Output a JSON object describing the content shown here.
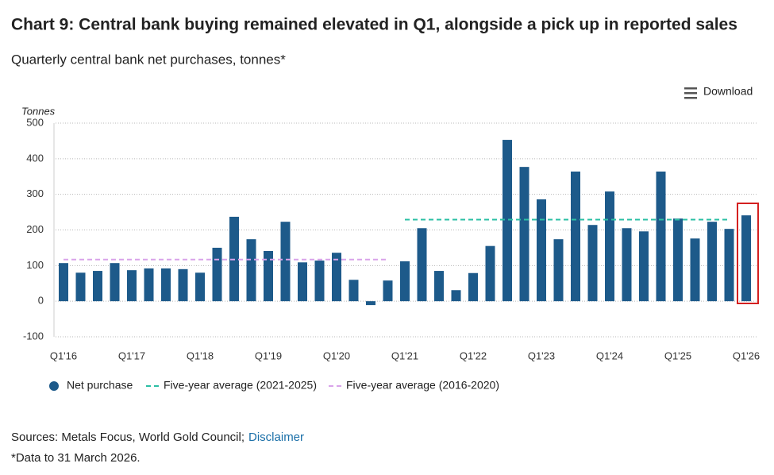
{
  "chart_data": {
    "type": "bar",
    "title": "Chart 9: Central bank buying remained elevated in Q1, alongside a pick up in reported sales",
    "subtitle": "Quarterly central bank net purchases, tonnes*",
    "y_label": "Tonnes",
    "categories": [
      "Q1'16",
      null,
      null,
      null,
      "Q1'17",
      null,
      null,
      null,
      "Q1'18",
      null,
      null,
      null,
      "Q1'19",
      null,
      null,
      null,
      "Q1'20",
      null,
      null,
      null,
      "Q1'21",
      null,
      null,
      null,
      "Q1'22",
      null,
      null,
      null,
      "Q1'23",
      null,
      null,
      null,
      "Q1'24",
      null,
      null,
      null,
      "Q1'25",
      null,
      null,
      null,
      "Q1'26"
    ],
    "series": [
      {
        "name": "Net purchase",
        "type": "bar",
        "color": "#1d5a8a",
        "values": [
          107,
          80,
          85,
          107,
          87,
          92,
          92,
          90,
          80,
          150,
          237,
          174,
          141,
          223,
          109,
          114,
          136,
          60,
          -11,
          58,
          112,
          205,
          85,
          31,
          79,
          155,
          453,
          377,
          286,
          174,
          364,
          214,
          308,
          205,
          196,
          364,
          232,
          176,
          223,
          203,
          241
        ]
      },
      {
        "name": "Five-year average (2021-2025)",
        "type": "line",
        "style": "dashed",
        "color": "#2bbfa4",
        "values": [
          null,
          null,
          null,
          null,
          null,
          null,
          null,
          null,
          null,
          null,
          null,
          null,
          null,
          null,
          null,
          null,
          null,
          null,
          null,
          null,
          229,
          229,
          229,
          229,
          229,
          229,
          229,
          229,
          229,
          229,
          229,
          229,
          229,
          229,
          229,
          229,
          229,
          229,
          229,
          229,
          null
        ]
      },
      {
        "name": "Five-year average (2016-2020)",
        "type": "line",
        "style": "dashed",
        "color": "#d9a3ea",
        "values": [
          117,
          117,
          117,
          117,
          117,
          117,
          117,
          117,
          117,
          117,
          117,
          117,
          117,
          117,
          117,
          117,
          117,
          117,
          117,
          117,
          null,
          null,
          null,
          null,
          null,
          null,
          null,
          null,
          null,
          null,
          null,
          null,
          null,
          null,
          null,
          null,
          null,
          null,
          null,
          null,
          null
        ]
      }
    ],
    "ylim": [
      -100,
      500
    ],
    "yticks": [
      -100,
      0,
      100,
      200,
      300,
      400,
      500
    ],
    "grid": true
  },
  "download": "Download",
  "sources": {
    "text": "Sources: Metals Focus, World Gold Council;",
    "link": "Disclaimer"
  },
  "note": "*Data to 31 March 2026."
}
